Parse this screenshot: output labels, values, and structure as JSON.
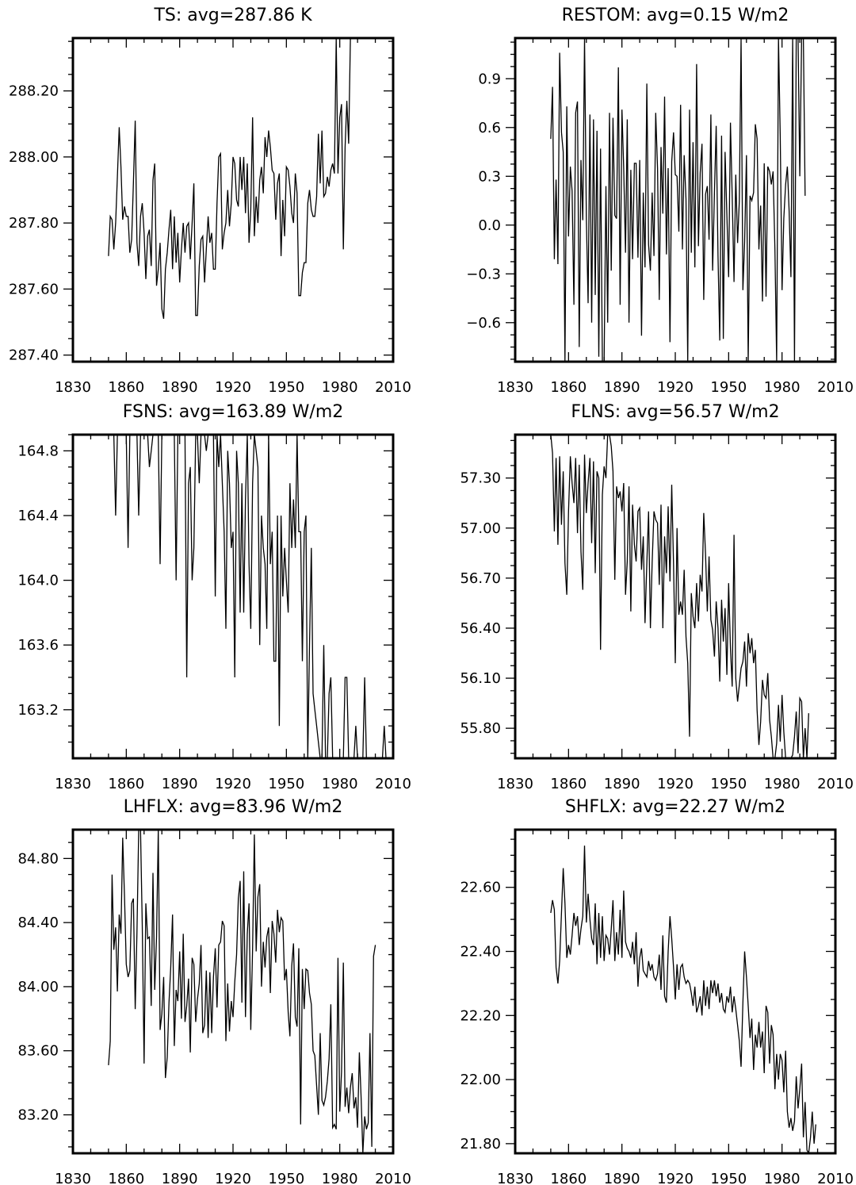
{
  "chart_data": [
    {
      "type": "line",
      "title": "TS: avg=287.86 K",
      "xlim": [
        1830,
        2010
      ],
      "ylim": [
        287.38,
        288.36
      ],
      "x_ticks": [
        1830,
        1860,
        1890,
        1920,
        1950,
        1980,
        2010
      ],
      "x_tick_labels": [
        "1830",
        "1860",
        "1890",
        "1920",
        "1950",
        "1980",
        "2010"
      ],
      "y_ticks": [
        287.4,
        287.6,
        287.8,
        288.0,
        288.2
      ],
      "y_tick_labels": [
        "287.40",
        "287.60",
        "287.80",
        "288.00",
        "288.20"
      ],
      "grid": false,
      "x_start": 1850,
      "values": [
        287.7,
        287.82,
        287.81,
        287.72,
        287.8,
        287.94,
        288.09,
        287.97,
        287.81,
        287.85,
        287.82,
        287.82,
        287.71,
        287.75,
        287.92,
        288.11,
        287.74,
        287.67,
        287.82,
        287.86,
        287.77,
        287.63,
        287.76,
        287.78,
        287.67,
        287.93,
        287.98,
        287.61,
        287.66,
        287.74,
        287.54,
        287.51,
        287.66,
        287.71,
        287.78,
        287.84,
        287.66,
        287.82,
        287.68,
        287.77,
        287.62,
        287.72,
        287.8,
        287.71,
        287.79,
        287.8,
        287.69,
        287.8,
        287.92,
        287.52,
        287.52,
        287.67,
        287.75,
        287.76,
        287.62,
        287.72,
        287.82,
        287.74,
        287.77,
        287.66,
        287.66,
        287.86,
        288.0,
        288.01,
        287.72,
        287.77,
        287.8,
        287.9,
        287.79,
        287.86,
        288.0,
        287.98,
        287.87,
        287.85,
        288.0,
        287.9,
        288.0,
        287.83,
        287.98,
        287.74,
        287.84,
        288.12,
        287.76,
        287.88,
        287.8,
        287.93,
        287.97,
        287.89,
        288.06,
        288.0,
        288.08,
        288.03,
        287.96,
        287.95,
        287.81,
        287.92,
        287.95,
        287.7,
        287.87,
        287.76,
        287.97,
        287.96,
        287.91,
        287.83,
        287.8,
        287.95,
        287.89,
        287.58,
        287.58,
        287.65,
        287.68,
        287.68,
        287.86,
        287.9,
        287.84,
        287.82,
        287.82,
        287.88,
        288.07,
        287.92,
        288.08,
        287.88,
        287.89,
        287.94,
        287.91,
        287.96,
        287.98,
        287.95,
        288.36,
        287.95,
        288.12,
        288.16,
        287.72,
        288.03,
        288.17,
        288.04,
        288.36
      ]
    },
    {
      "type": "line",
      "title": "RESTOM: avg=0.15 W/m2",
      "xlim": [
        1830,
        2010
      ],
      "ylim": [
        -0.84,
        1.15
      ],
      "x_ticks": [
        1830,
        1860,
        1890,
        1920,
        1950,
        1980,
        2010
      ],
      "x_tick_labels": [
        "1830",
        "1860",
        "1890",
        "1920",
        "1950",
        "1980",
        "2010"
      ],
      "y_ticks": [
        -0.6,
        -0.3,
        0.0,
        0.3,
        0.6,
        0.9
      ],
      "y_tick_labels": [
        "−0.6",
        "−0.3",
        "0.0",
        "0.3",
        "0.6",
        "0.9"
      ],
      "grid": false,
      "x_start": 1850,
      "values": [
        0.53,
        0.85,
        -0.21,
        0.28,
        -0.24,
        1.06,
        0.57,
        0.45,
        -0.84,
        0.73,
        -0.07,
        0.36,
        0.21,
        -0.49,
        0.69,
        0.76,
        -0.75,
        0.4,
        0.03,
        1.15,
        0.04,
        -0.48,
        0.68,
        -0.6,
        0.65,
        -0.43,
        0.58,
        -0.81,
        0.47,
        -0.84,
        -0.84,
        0.24,
        -0.6,
        0.69,
        -0.28,
        0.66,
        0.06,
        0.04,
        0.97,
        -0.49,
        0.71,
        0.35,
        -0.17,
        0.65,
        -0.6,
        0.34,
        -0.21,
        0.38,
        0.38,
        -0.2,
        0.4,
        -0.68,
        0.2,
        -0.26,
        0.87,
        -0.12,
        -0.28,
        0.2,
        -0.19,
        0.69,
        0.35,
        -0.46,
        0.48,
        0.07,
        0.79,
        -0.18,
        0.35,
        -0.72,
        0.39,
        0.57,
        0.31,
        0.3,
        -0.04,
        0.74,
        -0.15,
        0.43,
        0.16,
        -0.84,
        0.71,
        -0.17,
        0.51,
        -0.26,
        0.99,
        -0.13,
        0.32,
        0.5,
        -0.46,
        0.19,
        0.24,
        -0.09,
        0.68,
        -0.28,
        0.2,
        0.61,
        -0.19,
        -0.71,
        0.55,
        -0.7,
        0.45,
        0.06,
        -0.32,
        0.63,
        0.18,
        -0.35,
        0.31,
        -0.11,
        0.15,
        1.15,
        -0.4,
        -0.1,
        0.43,
        -0.84,
        0.18,
        0.15,
        0.2,
        0.62,
        0.53,
        -0.15,
        0.12,
        -0.47,
        0.38,
        -0.44,
        0.36,
        0.33,
        0.25,
        0.33,
        -0.15,
        -0.84,
        1.15,
        0.55,
        -0.4,
        0.04,
        0.25,
        0.36,
        0.09,
        -0.32,
        1.15,
        -0.84,
        1.15,
        1.15,
        0.3,
        1.15,
        1.15,
        0.18
      ]
    },
    {
      "type": "line",
      "title": "FSNS: avg=163.89 W/m2",
      "xlim": [
        1830,
        2010
      ],
      "ylim": [
        162.9,
        164.9
      ],
      "x_ticks": [
        1830,
        1860,
        1890,
        1920,
        1950,
        1980,
        2010
      ],
      "x_tick_labels": [
        "1830",
        "1860",
        "1890",
        "1920",
        "1950",
        "1980",
        "2010"
      ],
      "y_ticks": [
        163.2,
        163.6,
        164.0,
        164.4,
        164.8
      ],
      "y_tick_labels": [
        "163.2",
        "163.6",
        "164.0",
        "164.4",
        "164.8"
      ],
      "grid": false,
      "x_start": 1850,
      "values": [
        164.9,
        164.9,
        164.9,
        164.9,
        164.4,
        164.9,
        164.9,
        164.9,
        164.9,
        164.9,
        164.9,
        164.2,
        164.9,
        164.9,
        164.9,
        164.9,
        164.9,
        164.4,
        164.9,
        164.9,
        164.9,
        164.9,
        164.9,
        164.7,
        164.8,
        164.9,
        164.9,
        164.9,
        164.9,
        164.1,
        164.9,
        164.9,
        164.9,
        164.9,
        164.9,
        164.9,
        164.9,
        164.9,
        164.0,
        164.9,
        164.9,
        164.9,
        164.9,
        164.9,
        163.4,
        164.6,
        164.7,
        164.0,
        164.2,
        164.9,
        164.9,
        164.6,
        164.9,
        164.9,
        164.9,
        164.8,
        164.9,
        164.9,
        164.9,
        164.9,
        163.9,
        164.9,
        164.7,
        164.9,
        164.6,
        164.3,
        163.7,
        164.8,
        164.6,
        164.2,
        164.3,
        163.4,
        164.8,
        164.6,
        163.8,
        164.6,
        163.8,
        164.5,
        164.9,
        164.1,
        163.7,
        164.6,
        164.9,
        164.8,
        164.7,
        163.6,
        164.4,
        164.2,
        164.1,
        163.7,
        164.9,
        164.1,
        164.3,
        163.5,
        163.5,
        164.4,
        163.1,
        164.4,
        163.9,
        164.2,
        164.0,
        163.8,
        164.6,
        164.2,
        164.5,
        164.2,
        164.9,
        164.3,
        164.3,
        163.5,
        164.3,
        164.4,
        162.9,
        163.6,
        164.2,
        163.3,
        163.2,
        163.1,
        163.0,
        162.9,
        162.9,
        163.6,
        162.9,
        162.9,
        163.3,
        163.4,
        162.9,
        162.9,
        162.9,
        162.9,
        162.9,
        162.9,
        162.9,
        163.4,
        163.4,
        162.9,
        162.9,
        162.9,
        162.9,
        163.1,
        162.9,
        162.9,
        162.9,
        162.9,
        163.4,
        162.9,
        162.9,
        162.9,
        162.9,
        162.9,
        162.9,
        162.9,
        162.9,
        162.9,
        162.9,
        163.1,
        162.9,
        162.9,
        162.9,
        162.9,
        162.9,
        162.9,
        162.9,
        163.5,
        162.9
      ]
    },
    {
      "type": "line",
      "title": "FLNS: avg=56.57 W/m2",
      "xlim": [
        1830,
        2010
      ],
      "ylim": [
        55.62,
        57.56
      ],
      "x_ticks": [
        1830,
        1860,
        1890,
        1920,
        1950,
        1980,
        2010
      ],
      "x_tick_labels": [
        "1830",
        "1860",
        "1890",
        "1920",
        "1950",
        "1980",
        "2010"
      ],
      "y_ticks": [
        55.8,
        56.1,
        56.4,
        56.7,
        57.0,
        57.3
      ],
      "y_tick_labels": [
        "55.80",
        "56.10",
        "56.40",
        "56.70",
        "57.00",
        "57.30"
      ],
      "grid": false,
      "x_start": 1850,
      "values": [
        57.56,
        57.45,
        56.98,
        57.42,
        56.9,
        57.43,
        57.02,
        57.34,
        56.79,
        56.6,
        57.1,
        57.43,
        57.27,
        57.15,
        57.42,
        56.97,
        57.38,
        56.86,
        56.63,
        57.44,
        57.09,
        57.27,
        57.42,
        56.91,
        57.4,
        56.73,
        57.34,
        57.3,
        56.27,
        57.2,
        57.37,
        57.3,
        57.56,
        57.56,
        57.49,
        57.34,
        56.69,
        57.25,
        57.18,
        57.22,
        57.1,
        57.27,
        56.6,
        56.8,
        57.25,
        56.5,
        57.14,
        56.9,
        56.8,
        57.1,
        57.12,
        56.75,
        56.95,
        56.43,
        56.79,
        57.1,
        56.4,
        56.79,
        57.1,
        57.05,
        57.03,
        56.66,
        57.14,
        56.4,
        56.95,
        56.73,
        57.13,
        56.68,
        57.26,
        56.78,
        56.19,
        57.0,
        56.48,
        56.56,
        56.48,
        56.75,
        56.35,
        56.19,
        55.75,
        56.61,
        56.47,
        56.4,
        56.67,
        56.44,
        56.72,
        56.62,
        57.09,
        56.84,
        56.5,
        56.83,
        56.45,
        56.39,
        56.23,
        56.56,
        56.4,
        56.08,
        56.57,
        56.32,
        56.52,
        56.12,
        56.67,
        56.28,
        56.05,
        56.96,
        56.1,
        55.96,
        56.06,
        56.16,
        56.2,
        56.32,
        56.05,
        56.37,
        56.25,
        56.34,
        56.19,
        56.27,
        55.91,
        55.7,
        55.84,
        56.09,
        56.0,
        55.98,
        56.13,
        55.85,
        55.75,
        55.62,
        55.62,
        55.71,
        55.94,
        55.72,
        56.0,
        55.78,
        55.62,
        55.62,
        55.62,
        55.62,
        55.64,
        55.75,
        55.9,
        55.65,
        55.98,
        55.96,
        55.62,
        55.8,
        55.62,
        55.89
      ]
    },
    {
      "type": "line",
      "title": "LHFLX: avg=83.96 W/m2",
      "xlim": [
        1830,
        2010
      ],
      "ylim": [
        82.96,
        84.98
      ],
      "x_ticks": [
        1830,
        1860,
        1890,
        1920,
        1950,
        1980,
        2010
      ],
      "x_tick_labels": [
        "1830",
        "1860",
        "1890",
        "1920",
        "1950",
        "1980",
        "2010"
      ],
      "y_ticks": [
        83.2,
        83.6,
        84.0,
        84.4,
        84.8
      ],
      "y_tick_labels": [
        "83.20",
        "83.60",
        "84.00",
        "84.40",
        "84.80"
      ],
      "grid": false,
      "x_start": 1850,
      "values": [
        83.51,
        83.66,
        84.7,
        84.23,
        84.37,
        83.97,
        84.45,
        84.33,
        84.93,
        84.56,
        84.14,
        84.06,
        84.1,
        84.52,
        84.55,
        83.86,
        84.34,
        84.98,
        84.98,
        84.38,
        83.52,
        84.52,
        84.3,
        84.31,
        83.88,
        84.71,
        83.98,
        84.31,
        84.98,
        83.73,
        83.83,
        84.06,
        83.43,
        83.56,
        83.9,
        84.12,
        84.45,
        83.63,
        83.98,
        83.91,
        84.22,
        83.8,
        84.33,
        83.78,
        83.88,
        84.05,
        83.59,
        84.18,
        84.14,
        83.78,
        83.92,
        84.02,
        84.26,
        83.71,
        83.76,
        84.1,
        83.68,
        84.09,
        83.71,
        84.06,
        84.24,
        83.87,
        84.26,
        84.28,
        84.41,
        84.38,
        83.66,
        84.02,
        83.72,
        83.91,
        83.81,
        84.03,
        84.2,
        84.55,
        84.66,
        83.9,
        84.72,
        83.81,
        84.33,
        84.52,
        83.73,
        84.24,
        84.95,
        84.22,
        84.56,
        84.64,
        84.0,
        84.28,
        84.12,
        84.31,
        84.37,
        83.96,
        84.41,
        84.33,
        84.15,
        84.48,
        84.34,
        84.43,
        84.41,
        84.04,
        84.11,
        83.84,
        83.69,
        84.13,
        84.27,
        83.81,
        83.75,
        84.24,
        83.14,
        84.11,
        83.86,
        84.11,
        84.1,
        83.96,
        83.89,
        83.6,
        83.57,
        83.38,
        83.2,
        83.71,
        83.29,
        83.26,
        83.31,
        83.41,
        83.55,
        83.89,
        83.12,
        83.14,
        83.11,
        84.18,
        83.22,
        83.47,
        84.15,
        83.25,
        83.37,
        83.21,
        83.37,
        83.46,
        83.24,
        83.31,
        83.12,
        83.59,
        83.31,
        82.96,
        83.19,
        83.11,
        83.15,
        83.71,
        83.0,
        84.19,
        84.26
      ]
    },
    {
      "type": "line",
      "title": "SHFLX: avg=22.27 W/m2",
      "xlim": [
        1830,
        2010
      ],
      "ylim": [
        21.77,
        22.78
      ],
      "x_ticks": [
        1830,
        1860,
        1890,
        1920,
        1950,
        1980,
        2010
      ],
      "x_tick_labels": [
        "1830",
        "1860",
        "1890",
        "1920",
        "1950",
        "1980",
        "2010"
      ],
      "y_ticks": [
        21.8,
        22.0,
        22.2,
        22.4,
        22.6
      ],
      "y_tick_labels": [
        "21.80",
        "22.00",
        "22.20",
        "22.40",
        "22.60"
      ],
      "grid": false,
      "x_start": 1850,
      "values": [
        22.52,
        22.56,
        22.53,
        22.35,
        22.3,
        22.37,
        22.52,
        22.66,
        22.55,
        22.38,
        22.42,
        22.39,
        22.45,
        22.52,
        22.48,
        22.51,
        22.42,
        22.47,
        22.51,
        22.73,
        22.49,
        22.58,
        22.5,
        22.44,
        22.42,
        22.55,
        22.36,
        22.52,
        22.38,
        22.51,
        22.37,
        22.45,
        22.44,
        22.39,
        22.47,
        22.56,
        22.37,
        22.46,
        22.39,
        22.53,
        22.38,
        22.59,
        22.43,
        22.41,
        22.4,
        22.38,
        22.43,
        22.36,
        22.46,
        22.29,
        22.38,
        22.41,
        22.34,
        22.33,
        22.32,
        22.37,
        22.34,
        22.36,
        22.32,
        22.31,
        22.33,
        22.39,
        22.28,
        22.45,
        22.26,
        22.24,
        22.4,
        22.51,
        22.44,
        22.35,
        22.25,
        22.36,
        22.28,
        22.35,
        22.36,
        22.32,
        22.3,
        22.31,
        22.3,
        22.27,
        22.23,
        22.29,
        22.21,
        22.23,
        22.26,
        22.2,
        22.31,
        22.23,
        22.29,
        22.22,
        22.31,
        22.27,
        22.31,
        22.26,
        22.3,
        22.24,
        22.27,
        22.22,
        22.21,
        22.26,
        22.24,
        22.29,
        22.21,
        22.26,
        22.22,
        22.17,
        22.12,
        22.04,
        22.24,
        22.4,
        22.32,
        22.23,
        22.13,
        22.19,
        22.03,
        22.14,
        22.1,
        22.18,
        22.1,
        22.15,
        22.02,
        22.23,
        22.21,
        22.05,
        22.17,
        22.14,
        21.97,
        22.08,
        22.0,
        22.08,
        22.06,
        21.96,
        22.09,
        21.9,
        21.85,
        21.88,
        21.84,
        21.87,
        22.01,
        21.91,
        21.97,
        22.05,
        21.82,
        21.93,
        21.78,
        21.77,
        21.82,
        21.9,
        21.8,
        21.86
      ]
    }
  ]
}
